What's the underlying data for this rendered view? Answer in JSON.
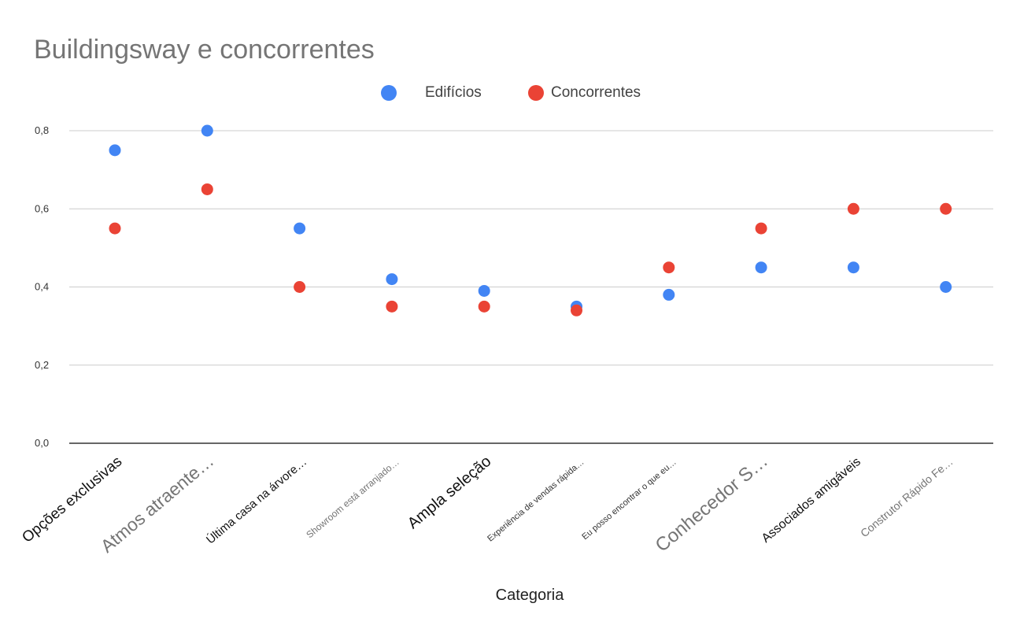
{
  "chart_data": {
    "type": "scatter",
    "title": "Buildingsway e concorrentes",
    "xlabel": "Categoria",
    "ylabel": "",
    "ylim": [
      0,
      0.8
    ],
    "yticks": [
      "0,0",
      "0,2",
      "0,4",
      "0,6",
      "0,8"
    ],
    "ytick_values": [
      0,
      0.2,
      0.4,
      0.6,
      0.8
    ],
    "grid": true,
    "legend_position": "top",
    "categories": [
      "Opções exclusivas",
      "Atmos atraente…",
      "Última casa na árvore…",
      "Showroom está arranjado…",
      "Ampla seleção",
      "Experiência de vendas rápida…",
      "Eu posso encontrar o que eu…",
      "Conhecedor S…",
      "Associados amigáveis",
      "Construtor Rápido Fe…"
    ],
    "series": [
      {
        "name": "Edifícios",
        "color": "#4285F4",
        "values": [
          0.75,
          0.8,
          0.55,
          0.42,
          0.39,
          0.35,
          0.38,
          0.45,
          0.45,
          0.4
        ]
      },
      {
        "name": "Concorrentes",
        "color": "#EA4335",
        "values": [
          0.55,
          0.65,
          0.4,
          0.35,
          0.35,
          0.34,
          0.45,
          0.55,
          0.6,
          0.6
        ]
      }
    ]
  }
}
